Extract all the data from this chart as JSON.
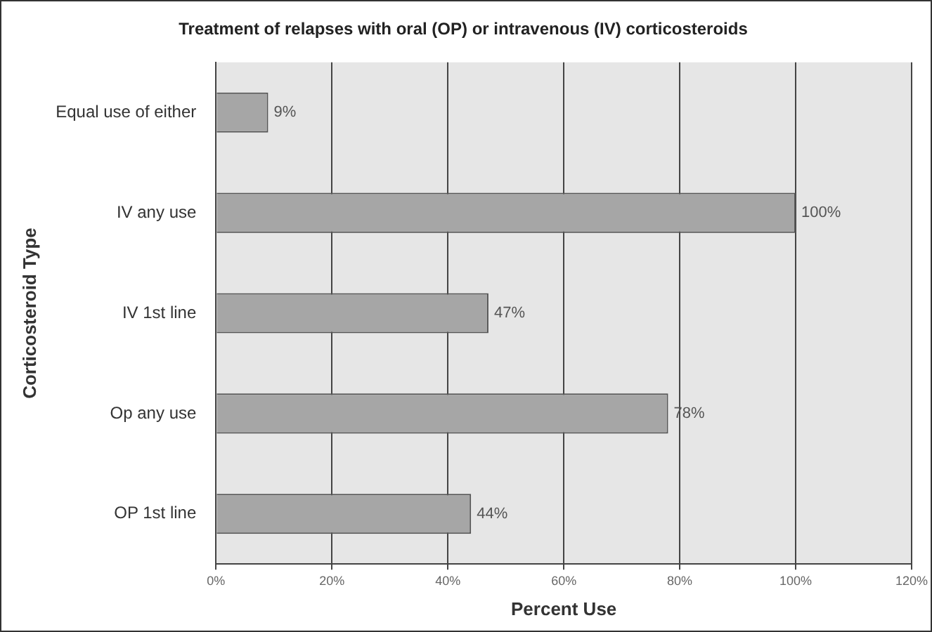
{
  "chart_data": {
    "type": "bar",
    "orientation": "horizontal",
    "title": "Treatment of relapses with oral (OP) or intravenous (IV) corticosteroids",
    "xlabel": "Percent Use",
    "ylabel": "Corticosteroid Type",
    "categories": [
      "Equal use of either",
      "IV any use",
      "IV 1st line",
      "Op any use",
      "OP 1st line"
    ],
    "values": [
      9,
      100,
      47,
      78,
      44
    ],
    "color": "#a6a6a6",
    "value_labels": [
      "9%",
      "100%",
      "47%",
      "78%",
      "44%"
    ],
    "xlim": [
      0,
      120
    ],
    "xticks": [
      {
        "value": 0,
        "label": "0%"
      },
      {
        "value": 20,
        "label": "20%"
      },
      {
        "value": 40,
        "label": "40%"
      },
      {
        "value": 60,
        "label": "60%"
      },
      {
        "value": 80,
        "label": "80%"
      },
      {
        "value": 100,
        "label": "100%"
      },
      {
        "value": 120,
        "label": "120%"
      }
    ],
    "grid": "x",
    "legend": false
  }
}
